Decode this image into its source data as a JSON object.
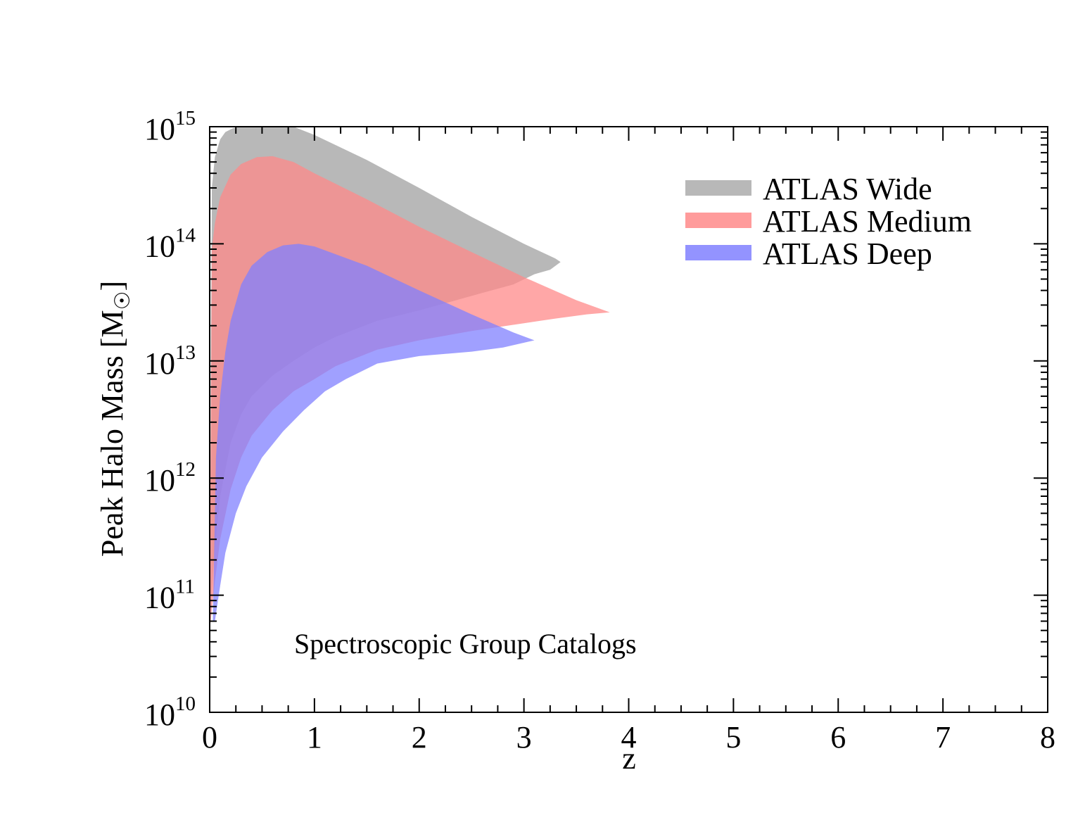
{
  "chart_data": {
    "type": "area",
    "title": "",
    "xlabel": "z",
    "ylabel": "Peak Halo Mass [M☉]",
    "ylabel_main": "Peak Halo Mass [M",
    "ylabel_sub": "☉",
    "ylabel_close": "]",
    "xlim": [
      0,
      8
    ],
    "ylim": [
      10000000000,
      1000000000000000
    ],
    "yscale": "log",
    "x_ticks": [
      0,
      1,
      2,
      3,
      4,
      5,
      6,
      7,
      8
    ],
    "x_tick_labels": [
      "0",
      "1",
      "2",
      "3",
      "4",
      "5",
      "6",
      "7",
      "8"
    ],
    "y_ticks": [
      {
        "value": 10000000000,
        "base": "10",
        "exp": "10"
      },
      {
        "value": 100000000000,
        "base": "10",
        "exp": "11"
      },
      {
        "value": 1000000000000,
        "base": "10",
        "exp": "12"
      },
      {
        "value": 10000000000000,
        "base": "10",
        "exp": "13"
      },
      {
        "value": 100000000000000,
        "base": "10",
        "exp": "14"
      },
      {
        "value": 1000000000000000,
        "base": "10",
        "exp": "15"
      }
    ],
    "grid": false,
    "legend_position": "top-right",
    "annotation": "Spectroscopic Group Catalogs",
    "series": [
      {
        "name": "ATLAS Wide",
        "color": "#b8b8b8",
        "opacity": 1.0,
        "upper": [
          [
            0.0,
            60000000000
          ],
          [
            0.02,
            300000000000000
          ],
          [
            0.05,
            550000000000000
          ],
          [
            0.1,
            780000000000000
          ],
          [
            0.15,
            900000000000000
          ],
          [
            0.22,
            970000000000000
          ],
          [
            0.3,
            1000000000000000
          ],
          [
            0.5,
            1000000000000000
          ],
          [
            0.8,
            1000000000000000
          ],
          [
            1.0,
            850000000000000
          ],
          [
            1.5,
            520000000000000
          ],
          [
            2.0,
            300000000000000
          ],
          [
            2.5,
            170000000000000
          ],
          [
            3.0,
            100000000000000
          ],
          [
            3.3,
            75000000000000
          ],
          [
            3.35,
            70000000000000
          ]
        ],
        "lower": [
          [
            3.35,
            70000000000000
          ],
          [
            3.25,
            60000000000000
          ],
          [
            3.1,
            55000000000000
          ],
          [
            2.9,
            45000000000000
          ],
          [
            2.6,
            38000000000000
          ],
          [
            2.3,
            32000000000000
          ],
          [
            2.0,
            27000000000000
          ],
          [
            1.6,
            22000000000000
          ],
          [
            1.2,
            16000000000000
          ],
          [
            1.0,
            13000000000000
          ],
          [
            0.8,
            10000000000000
          ],
          [
            0.6,
            7500000000000
          ],
          [
            0.4,
            5000000000000
          ],
          [
            0.3,
            3500000000000
          ],
          [
            0.2,
            2000000000000
          ],
          [
            0.1,
            700000000000
          ],
          [
            0.05,
            250000000000
          ],
          [
            0.0,
            60000000000
          ]
        ]
      },
      {
        "name": "ATLAS Medium",
        "color": "#ff8a8a",
        "opacity": 0.75,
        "upper": [
          [
            0.0,
            60000000000
          ],
          [
            0.02,
            90000000000000
          ],
          [
            0.05,
            150000000000000
          ],
          [
            0.1,
            250000000000000
          ],
          [
            0.2,
            390000000000000
          ],
          [
            0.3,
            480000000000000
          ],
          [
            0.45,
            550000000000000
          ],
          [
            0.6,
            560000000000000
          ],
          [
            0.8,
            500000000000000
          ],
          [
            1.0,
            400000000000000
          ],
          [
            1.5,
            240000000000000
          ],
          [
            2.0,
            140000000000000
          ],
          [
            2.5,
            85000000000000
          ],
          [
            3.0,
            52000000000000
          ],
          [
            3.5,
            33000000000000
          ],
          [
            3.82,
            26000000000000
          ]
        ],
        "lower": [
          [
            3.82,
            26000000000000
          ],
          [
            3.6,
            25000000000000
          ],
          [
            3.3,
            23000000000000
          ],
          [
            3.0,
            21000000000000
          ],
          [
            2.5,
            18000000000000
          ],
          [
            2.0,
            15000000000000
          ],
          [
            1.6,
            12500000000000
          ],
          [
            1.2,
            9000000000000
          ],
          [
            1.0,
            7000000000000
          ],
          [
            0.8,
            5500000000000
          ],
          [
            0.6,
            3800000000000
          ],
          [
            0.4,
            2300000000000
          ],
          [
            0.3,
            1500000000000
          ],
          [
            0.2,
            800000000000
          ],
          [
            0.1,
            300000000000
          ],
          [
            0.05,
            130000000000
          ],
          [
            0.0,
            50000000000
          ]
        ]
      },
      {
        "name": "ATLAS Deep",
        "color": "#8080ff",
        "opacity": 0.75,
        "upper": [
          [
            0.03,
            60000000000
          ],
          [
            0.06,
            1500000000000
          ],
          [
            0.1,
            5000000000000
          ],
          [
            0.15,
            12000000000000
          ],
          [
            0.2,
            22000000000000
          ],
          [
            0.3,
            45000000000000
          ],
          [
            0.4,
            65000000000000
          ],
          [
            0.55,
            85000000000000
          ],
          [
            0.7,
            97000000000000
          ],
          [
            0.85,
            100000000000000
          ],
          [
            1.0,
            95000000000000
          ],
          [
            1.5,
            65000000000000
          ],
          [
            2.0,
            40000000000000
          ],
          [
            2.5,
            25000000000000
          ],
          [
            2.9,
            17500000000000
          ],
          [
            3.1,
            15000000000000
          ]
        ],
        "lower": [
          [
            3.1,
            15000000000000
          ],
          [
            2.8,
            13000000000000
          ],
          [
            2.5,
            12000000000000
          ],
          [
            2.0,
            11000000000000
          ],
          [
            1.6,
            9500000000000
          ],
          [
            1.3,
            7000000000000
          ],
          [
            1.1,
            5500000000000
          ],
          [
            0.9,
            3800000000000
          ],
          [
            0.7,
            2500000000000
          ],
          [
            0.5,
            1500000000000
          ],
          [
            0.35,
            850000000000
          ],
          [
            0.25,
            500000000000
          ],
          [
            0.15,
            230000000000
          ],
          [
            0.1,
            120000000000
          ],
          [
            0.05,
            60000000000
          ],
          [
            0.03,
            60000000000
          ]
        ]
      }
    ]
  }
}
